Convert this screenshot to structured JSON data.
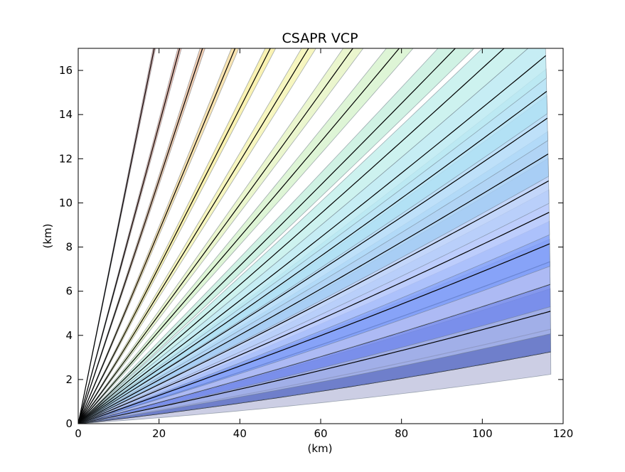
{
  "chart_data": {
    "type": "line",
    "title": "CSAPR VCP",
    "xlabel": "(km)",
    "ylabel": "(km)",
    "xlim": [
      0,
      120
    ],
    "ylim": [
      0,
      17
    ],
    "xticks": [
      0,
      20,
      40,
      60,
      80,
      100,
      120
    ],
    "yticks": [
      0,
      2,
      4,
      6,
      8,
      10,
      12,
      14,
      16
    ],
    "grid": false,
    "legend": "none",
    "max_range_km": 117,
    "beam_width_deg": 1.0,
    "series": [
      {
        "elevation_deg": 1.2,
        "color": "#c3c5df"
      },
      {
        "elevation_deg": 1.7,
        "color": "#5e71c7"
      },
      {
        "elevation_deg": 2.1,
        "color": "#a9b6ec"
      },
      {
        "elevation_deg": 2.7,
        "color": "#7086ea"
      },
      {
        "elevation_deg": 3.2,
        "color": "#b4c0f4"
      },
      {
        "elevation_deg": 3.6,
        "color": "#7c9cf8"
      },
      {
        "elevation_deg": 4.3,
        "color": "#b2c4fb"
      },
      {
        "elevation_deg": 5.0,
        "color": "#b9cff9"
      },
      {
        "elevation_deg": 5.6,
        "color": "#a3cdf3"
      },
      {
        "elevation_deg": 6.4,
        "color": "#b3daf8"
      },
      {
        "elevation_deg": 7.0,
        "color": "#b0e1f5"
      },
      {
        "elevation_deg": 7.8,
        "color": "#bceaf2"
      },
      {
        "elevation_deg": 8.8,
        "color": "#c4f0ec"
      },
      {
        "elevation_deg": 10.0,
        "color": "#c8f0df"
      },
      {
        "elevation_deg": 11.8,
        "color": "#d8f3cf"
      },
      {
        "elevation_deg": 13.8,
        "color": "#e8f5c5"
      },
      {
        "elevation_deg": 16.4,
        "color": "#f6f5b5"
      },
      {
        "elevation_deg": 19.5,
        "color": "#f9f0a6"
      },
      {
        "elevation_deg": 23.5,
        "color": "#f8dfa4"
      },
      {
        "elevation_deg": 28.8,
        "color": "#f1c7a6"
      },
      {
        "elevation_deg": 34.0,
        "color": "#edb9a9"
      },
      {
        "elevation_deg": 42.0,
        "color": "#e8b3ae"
      }
    ]
  }
}
